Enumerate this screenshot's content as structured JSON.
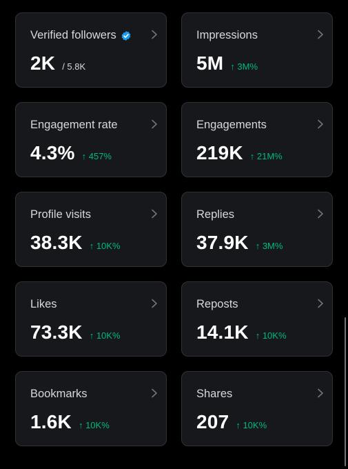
{
  "colors": {
    "background": "#000000",
    "card": "#16181c",
    "card_border": "#2f3336",
    "positive_change": "#00ba7c",
    "verified_badge": "#1d9bf0"
  },
  "icons": {
    "verified": "verified-badge-icon",
    "chevron": "chevron-right-icon"
  },
  "cards": [
    {
      "label": "Verified followers",
      "value": "2K",
      "sub": "/ 5.8K",
      "change": "",
      "verified": true
    },
    {
      "label": "Impressions",
      "value": "5M",
      "sub": "",
      "change": "↑ 3M%"
    },
    {
      "label": "Engagement rate",
      "value": "4.3%",
      "sub": "",
      "change": "↑ 457%"
    },
    {
      "label": "Engagements",
      "value": "219K",
      "sub": "",
      "change": "↑ 21M%"
    },
    {
      "label": "Profile visits",
      "value": "38.3K",
      "sub": "",
      "change": "↑ 10K%"
    },
    {
      "label": "Replies",
      "value": "37.9K",
      "sub": "",
      "change": "↑ 3M%"
    },
    {
      "label": "Likes",
      "value": "73.3K",
      "sub": "",
      "change": "↑ 10K%"
    },
    {
      "label": "Reposts",
      "value": "14.1K",
      "sub": "",
      "change": "↑ 10K%"
    },
    {
      "label": "Bookmarks",
      "value": "1.6K",
      "sub": "",
      "change": "↑ 10K%"
    },
    {
      "label": "Shares",
      "value": "207",
      "sub": "",
      "change": "↑ 10K%"
    }
  ]
}
